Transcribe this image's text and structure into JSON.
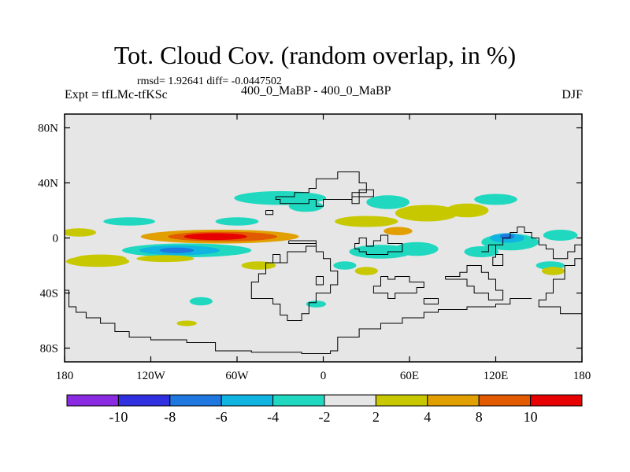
{
  "chart_data": {
    "type": "heatmap",
    "title": "Tot. Cloud Cov. (random overlap, in %)",
    "stats": "rmsd= 1.92641  diff= -0.0447502",
    "left_label": "Expt = tfLMc-tfKSc",
    "center_label": "400_0_MaBP - 400_0_MaBP",
    "right_label": "DJF",
    "xlim": [
      -180,
      180
    ],
    "ylim": [
      -90,
      90
    ],
    "x_ticks": [
      {
        "value": -180,
        "label": "180"
      },
      {
        "value": -120,
        "label": "120W"
      },
      {
        "value": -60,
        "label": "60W"
      },
      {
        "value": 0,
        "label": "0"
      },
      {
        "value": 60,
        "label": "60E"
      },
      {
        "value": 120,
        "label": "120E"
      },
      {
        "value": 180,
        "label": "180"
      }
    ],
    "y_ticks": [
      {
        "value": 80,
        "label": "80N"
      },
      {
        "value": 40,
        "label": "40N"
      },
      {
        "value": 0,
        "label": "0"
      },
      {
        "value": -40,
        "label": "40S"
      },
      {
        "value": -80,
        "label": "80S"
      }
    ],
    "colorbar": {
      "colors": [
        "#8a2be2",
        "#3030e0",
        "#1e78e0",
        "#10b4e0",
        "#20d8c0",
        "#e6e6e6",
        "#c8c800",
        "#e1a000",
        "#e15a00",
        "#e60000"
      ],
      "labels": [
        "-10",
        "-8",
        "-6",
        "-4",
        "-2",
        "2",
        "4",
        "8",
        "10"
      ]
    },
    "anomalies": [
      {
        "lon": -72,
        "lat": 1,
        "rlon": 55,
        "rlat": 5,
        "level": 7
      },
      {
        "lon": -70,
        "lat": 1,
        "rlon": 38,
        "rlat": 3.5,
        "level": 8
      },
      {
        "lon": -75,
        "lat": 1,
        "rlon": 22,
        "rlat": 2.5,
        "level": 9
      },
      {
        "lon": -95,
        "lat": -9,
        "rlon": 45,
        "rlat": 5,
        "level": 4
      },
      {
        "lon": -100,
        "lat": -9,
        "rlon": 28,
        "rlat": 3.5,
        "level": 3
      },
      {
        "lon": -102,
        "lat": -9,
        "rlon": 12,
        "rlat": 2,
        "level": 2
      },
      {
        "lon": -155,
        "lat": -15,
        "rlon": 18,
        "rlat": 3,
        "level": 6
      },
      {
        "lon": -110,
        "lat": -15,
        "rlon": 20,
        "rlat": 2.5,
        "level": 6
      },
      {
        "lon": -170,
        "lat": 4,
        "rlon": 12,
        "rlat": 3,
        "level": 6
      },
      {
        "lon": -135,
        "lat": 12,
        "rlon": 18,
        "rlat": 3,
        "level": 4
      },
      {
        "lon": -60,
        "lat": 12,
        "rlon": 15,
        "rlat": 3,
        "level": 4
      },
      {
        "lon": -30,
        "lat": 29,
        "rlon": 32,
        "rlat": 5,
        "level": 4
      },
      {
        "lon": -12,
        "lat": 23,
        "rlon": 12,
        "rlat": 4,
        "level": 4
      },
      {
        "lon": 45,
        "lat": 26,
        "rlon": 15,
        "rlat": 5,
        "level": 4
      },
      {
        "lon": 120,
        "lat": 28,
        "rlon": 15,
        "rlat": 4,
        "level": 4
      },
      {
        "lon": 72,
        "lat": 18,
        "rlon": 22,
        "rlat": 6,
        "level": 6
      },
      {
        "lon": 100,
        "lat": 20,
        "rlon": 15,
        "rlat": 5,
        "level": 6
      },
      {
        "lon": 30,
        "lat": 12,
        "rlon": 22,
        "rlat": 4,
        "level": 6
      },
      {
        "lon": 52,
        "lat": 5,
        "rlon": 10,
        "rlat": 3,
        "level": 7
      },
      {
        "lon": 40,
        "lat": -10,
        "rlon": 22,
        "rlat": 5,
        "level": 4
      },
      {
        "lon": 65,
        "lat": -8,
        "rlon": 15,
        "rlat": 5,
        "level": 4
      },
      {
        "lon": 110,
        "lat": -10,
        "rlon": 12,
        "rlat": 4,
        "level": 4
      },
      {
        "lon": 130,
        "lat": -3,
        "rlon": 20,
        "rlat": 6,
        "level": 4
      },
      {
        "lon": 128,
        "lat": 0,
        "rlon": 12,
        "rlat": 3.5,
        "level": 3
      },
      {
        "lon": 128,
        "lat": 1,
        "rlon": 5,
        "rlat": 2,
        "level": 2
      },
      {
        "lon": 165,
        "lat": 2,
        "rlon": 12,
        "rlat": 4,
        "level": 4
      },
      {
        "lon": 158,
        "lat": -20,
        "rlon": 10,
        "rlat": 3,
        "level": 4
      },
      {
        "lon": -157,
        "lat": -17,
        "rlon": 22,
        "rlat": 4,
        "level": 6
      },
      {
        "lon": -45,
        "lat": -20,
        "rlon": 12,
        "rlat": 3,
        "level": 6
      },
      {
        "lon": 15,
        "lat": -20,
        "rlon": 8,
        "rlat": 3,
        "level": 4
      },
      {
        "lon": 30,
        "lat": -24,
        "rlon": 8,
        "rlat": 3,
        "level": 6
      },
      {
        "lon": -85,
        "lat": -46,
        "rlon": 8,
        "rlat": 3,
        "level": 4
      },
      {
        "lon": -95,
        "lat": -62,
        "rlon": 7,
        "rlat": 2,
        "level": 6
      },
      {
        "lon": 160,
        "lat": -24,
        "rlon": 8,
        "rlat": 3,
        "level": 6
      },
      {
        "lon": -5,
        "lat": -48,
        "rlon": 7,
        "rlat": 2.5,
        "level": 4
      }
    ],
    "coastlines": [
      [
        [
          -33,
          30
        ],
        [
          -20,
          30
        ],
        [
          -20,
          33
        ],
        [
          -10,
          33
        ],
        [
          -10,
          36
        ],
        [
          -5,
          36
        ],
        [
          -5,
          43
        ],
        [
          10,
          43
        ],
        [
          10,
          48
        ],
        [
          25,
          48
        ],
        [
          25,
          40
        ],
        [
          30,
          40
        ],
        [
          30,
          33
        ],
        [
          20,
          33
        ],
        [
          20,
          25
        ],
        [
          25,
          25
        ],
        [
          25,
          35
        ],
        [
          35,
          35
        ],
        [
          35,
          30
        ],
        [
          20,
          30
        ],
        [
          20,
          28
        ],
        [
          10,
          28
        ],
        [
          0,
          28
        ],
        [
          0,
          23
        ],
        [
          -5,
          23
        ],
        [
          -5,
          28
        ],
        [
          -10,
          28
        ],
        [
          -10,
          25
        ],
        [
          -30,
          25
        ],
        [
          -30,
          28
        ],
        [
          -33,
          28
        ],
        [
          -33,
          30
        ]
      ],
      [
        [
          -24,
          -2
        ],
        [
          -5,
          -2
        ],
        [
          -5,
          -6
        ],
        [
          -12,
          -6
        ],
        [
          -12,
          -10
        ],
        [
          -25,
          -10
        ],
        [
          -25,
          -18
        ],
        [
          -40,
          -18
        ],
        [
          -40,
          -26
        ],
        [
          -45,
          -26
        ],
        [
          -45,
          -32
        ],
        [
          -50,
          -32
        ],
        [
          -50,
          -44
        ],
        [
          -35,
          -44
        ],
        [
          -35,
          -48
        ],
        [
          -30,
          -48
        ],
        [
          -30,
          -56
        ],
        [
          -25,
          -56
        ],
        [
          -25,
          -60
        ],
        [
          -15,
          -60
        ],
        [
          -15,
          -55
        ],
        [
          -10,
          -55
        ],
        [
          -10,
          -47
        ],
        [
          -5,
          -47
        ],
        [
          -5,
          -40
        ],
        [
          5,
          -40
        ],
        [
          5,
          -34
        ],
        [
          10,
          -34
        ],
        [
          10,
          -24
        ],
        [
          5,
          -24
        ],
        [
          5,
          -15
        ],
        [
          0,
          -15
        ],
        [
          0,
          -10
        ],
        [
          -5,
          -10
        ],
        [
          -5,
          -4
        ],
        [
          -24,
          -4
        ],
        [
          -24,
          -2
        ]
      ],
      [
        [
          -30,
          -12
        ],
        [
          -35,
          -12
        ],
        [
          -35,
          -18
        ],
        [
          -30,
          -18
        ],
        [
          -30,
          -12
        ]
      ],
      [
        [
          -5,
          -28
        ],
        [
          0,
          -28
        ],
        [
          0,
          -34
        ],
        [
          -5,
          -34
        ],
        [
          -5,
          -28
        ]
      ],
      [
        [
          22,
          -8
        ],
        [
          22,
          -4
        ],
        [
          25,
          -4
        ],
        [
          25,
          0
        ],
        [
          30,
          0
        ],
        [
          30,
          -6
        ],
        [
          35,
          -6
        ],
        [
          35,
          -2
        ],
        [
          40,
          -2
        ],
        [
          40,
          2
        ],
        [
          45,
          2
        ],
        [
          45,
          -4
        ],
        [
          55,
          -4
        ],
        [
          55,
          -10
        ],
        [
          45,
          -10
        ],
        [
          45,
          -12
        ],
        [
          30,
          -12
        ],
        [
          30,
          -10
        ],
        [
          25,
          -10
        ],
        [
          25,
          -8
        ],
        [
          22,
          -8
        ]
      ],
      [
        [
          40,
          -28
        ],
        [
          40,
          -35
        ],
        [
          35,
          -35
        ],
        [
          35,
          -40
        ],
        [
          45,
          -40
        ],
        [
          45,
          -44
        ],
        [
          50,
          -44
        ],
        [
          50,
          -40
        ],
        [
          65,
          -40
        ],
        [
          65,
          -36
        ],
        [
          70,
          -36
        ],
        [
          70,
          -32
        ],
        [
          60,
          -32
        ],
        [
          60,
          -28
        ],
        [
          50,
          -28
        ],
        [
          50,
          -30
        ],
        [
          45,
          -30
        ],
        [
          45,
          -28
        ],
        [
          40,
          -28
        ]
      ],
      [
        [
          85,
          -30
        ],
        [
          95,
          -30
        ],
        [
          100,
          -30
        ],
        [
          100,
          -35
        ],
        [
          105,
          -35
        ],
        [
          105,
          -40
        ],
        [
          115,
          -40
        ],
        [
          115,
          -45
        ],
        [
          125,
          -45
        ],
        [
          125,
          -38
        ],
        [
          120,
          -38
        ],
        [
          120,
          -30
        ],
        [
          115,
          -30
        ],
        [
          115,
          -25
        ],
        [
          110,
          -25
        ],
        [
          110,
          -20
        ],
        [
          100,
          -20
        ],
        [
          100,
          -25
        ],
        [
          95,
          -25
        ],
        [
          95,
          -28
        ],
        [
          85,
          -28
        ],
        [
          85,
          -30
        ]
      ],
      [
        [
          110,
          -10
        ],
        [
          115,
          -10
        ],
        [
          115,
          -5
        ],
        [
          120,
          -5
        ],
        [
          120,
          -14
        ],
        [
          118,
          -14
        ],
        [
          118,
          -20
        ],
        [
          125,
          -20
        ],
        [
          125,
          -12
        ],
        [
          120,
          -12
        ],
        [
          120,
          -5
        ],
        [
          125,
          -5
        ],
        [
          125,
          0
        ],
        [
          130,
          0
        ],
        [
          130,
          4
        ],
        [
          135,
          4
        ],
        [
          135,
          8
        ],
        [
          140,
          8
        ],
        [
          140,
          4
        ],
        [
          145,
          4
        ],
        [
          145,
          0
        ],
        [
          150,
          0
        ],
        [
          150,
          -5
        ],
        [
          155,
          -5
        ],
        [
          155,
          -8
        ],
        [
          160,
          -8
        ],
        [
          160,
          -15
        ],
        [
          170,
          -15
        ],
        [
          170,
          -10
        ],
        [
          175,
          -10
        ],
        [
          175,
          -5
        ],
        [
          180,
          -5
        ]
      ],
      [
        [
          180,
          -15
        ],
        [
          175,
          -15
        ],
        [
          175,
          -20
        ],
        [
          168,
          -20
        ],
        [
          168,
          -30
        ],
        [
          160,
          -30
        ],
        [
          160,
          -40
        ],
        [
          155,
          -40
        ],
        [
          155,
          -45
        ],
        [
          150,
          -45
        ],
        [
          150,
          -50
        ],
        [
          165,
          -50
        ],
        [
          165,
          -55
        ],
        [
          180,
          -55
        ]
      ],
      [
        [
          -180,
          -38
        ],
        [
          -177,
          -38
        ],
        [
          -177,
          -50
        ],
        [
          -172,
          -50
        ],
        [
          -172,
          -54
        ],
        [
          -165,
          -54
        ],
        [
          -165,
          -58
        ],
        [
          -155,
          -58
        ],
        [
          -155,
          -62
        ],
        [
          -145,
          -62
        ],
        [
          -145,
          -68
        ],
        [
          -135,
          -68
        ],
        [
          -135,
          -72
        ],
        [
          -120,
          -72
        ],
        [
          -120,
          -74
        ],
        [
          -95,
          -74
        ],
        [
          -95,
          -76
        ],
        [
          -75,
          -76
        ],
        [
          -75,
          -82
        ],
        [
          -50,
          -82
        ],
        [
          -50,
          -83
        ],
        [
          -15,
          -83
        ],
        [
          -15,
          -84
        ],
        [
          5,
          -84
        ],
        [
          5,
          -82
        ],
        [
          10,
          -82
        ],
        [
          10,
          -72
        ],
        [
          25,
          -72
        ],
        [
          25,
          -66
        ],
        [
          40,
          -66
        ],
        [
          40,
          -62
        ],
        [
          55,
          -62
        ],
        [
          55,
          -58
        ],
        [
          70,
          -58
        ],
        [
          70,
          -54
        ],
        [
          80,
          -54
        ],
        [
          80,
          -52
        ],
        [
          100,
          -52
        ],
        [
          100,
          -50
        ],
        [
          120,
          -50
        ],
        [
          120,
          -48
        ],
        [
          130,
          -48
        ],
        [
          130,
          -44
        ],
        [
          145,
          -44
        ]
      ],
      [
        [
          70,
          -48
        ],
        [
          80,
          -48
        ],
        [
          80,
          -44
        ],
        [
          70,
          -44
        ],
        [
          70,
          -48
        ]
      ],
      [
        [
          -40,
          20
        ],
        [
          -35,
          20
        ],
        [
          -35,
          17
        ],
        [
          -40,
          17
        ],
        [
          -40,
          20
        ]
      ]
    ]
  }
}
